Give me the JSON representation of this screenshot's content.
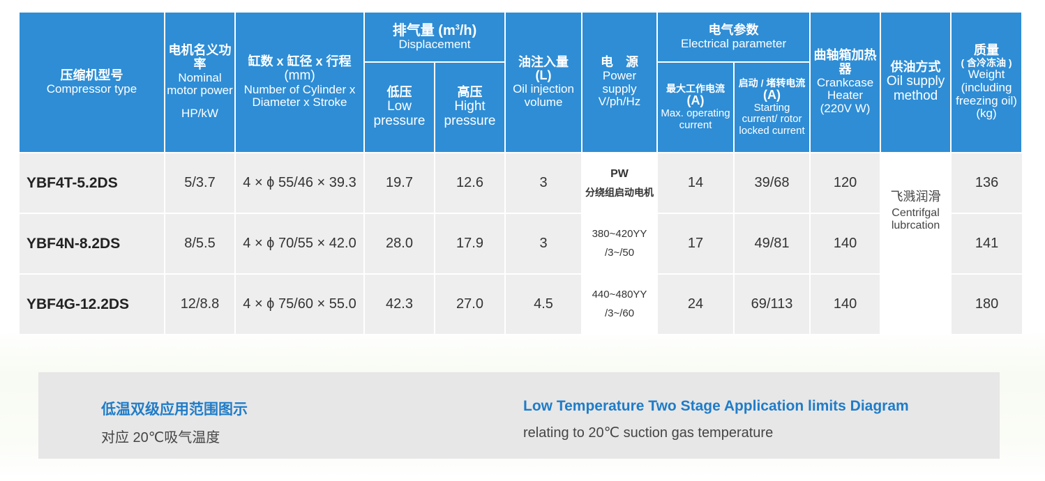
{
  "header": {
    "model": {
      "cn": "压缩机型号",
      "en": "Compressor type"
    },
    "motor_power": {
      "cn": "电机名义功率",
      "en": "Nominal motor power",
      "unit": "HP/kW"
    },
    "cylinder": {
      "cn": "缸数 x 缸径 x 行程",
      "unit": "(mm)",
      "en": "Number of Cylinder x Diameter x Stroke"
    },
    "displacement": {
      "cn": "排气量",
      "unit_prefix": "(m",
      "unit_sup": "3",
      "unit_suffix": "/h)",
      "en": "Displacement",
      "low": {
        "cn": "低压",
        "en": "Low pressure"
      },
      "high": {
        "cn": "高压",
        "en": "Hight pressure"
      }
    },
    "oil_injection": {
      "cn": "油注入量",
      "unit": "(L)",
      "en": "Oil injection volume"
    },
    "power_supply": {
      "cn": "电　源",
      "en": "Power supply V/ph/Hz"
    },
    "electrical": {
      "cn": "电气参数",
      "en": "Electrical parameter",
      "max_current": {
        "cn": "最大工作电流",
        "unit": "(A)",
        "en": "Max. operating current"
      },
      "start_current": {
        "cn": "启动 / 堵转电流",
        "unit": "(A)",
        "en": "Starting current/ rotor locked current"
      }
    },
    "heater": {
      "cn": "曲轴箱加热器",
      "en": "Crankcase Heater (220V W)"
    },
    "oil_supply": {
      "cn": "供油方式",
      "en": "Oil supply method"
    },
    "weight": {
      "cn": "质量",
      "cn_note": "( 含冷冻油 )",
      "en": "Weight (including freezing oil)",
      "unit": "(kg)"
    }
  },
  "rows": [
    {
      "model": "YBF4T-5.2DS",
      "power": "5/3.7",
      "cylinder": "4 × ϕ 55/46 × 39.3",
      "low": "19.7",
      "high": "12.6",
      "oil": "3",
      "max_current": "14",
      "start_current": "39/68",
      "heater": "120",
      "weight": "136"
    },
    {
      "model": "YBF4N-8.2DS",
      "power": "8/5.5",
      "cylinder": "4 × ϕ 70/55 × 42.0",
      "low": "28.0",
      "high": "17.9",
      "oil": "3",
      "max_current": "17",
      "start_current": "49/81",
      "heater": "140",
      "weight": "141"
    },
    {
      "model": "YBF4G-12.2DS",
      "power": "12/8.8",
      "cylinder": "4 × ϕ 75/60 × 55.0",
      "low": "42.3",
      "high": "27.0",
      "oil": "4.5",
      "max_current": "24",
      "start_current": "69/113",
      "heater": "140",
      "weight": "180"
    }
  ],
  "power_supply_cells": {
    "pw": "PW",
    "pw_desc": "分绕组启动电机",
    "r2_line1": "380~420YY",
    "r2_line2": "/3~/50",
    "r3_line1": "440~480YY",
    "r3_line2": "/3~/60"
  },
  "oil_supply_cell": {
    "cn": "飞溅润滑",
    "en": "Centrifgal lubrcation"
  },
  "caption": {
    "cn_title": "低温双级应用范围图示",
    "cn_sub": "对应 20℃吸气温度",
    "en_title": "Low Temperature Two Stage Application limits Diagram",
    "en_sub": "relating to 20℃ suction gas temperature"
  },
  "colors": {
    "header_bg": "#2e8dd5",
    "row_bg": "#eeeeee",
    "caption_bg": "#e7e7e7",
    "caption_title": "#1f7cc8"
  }
}
